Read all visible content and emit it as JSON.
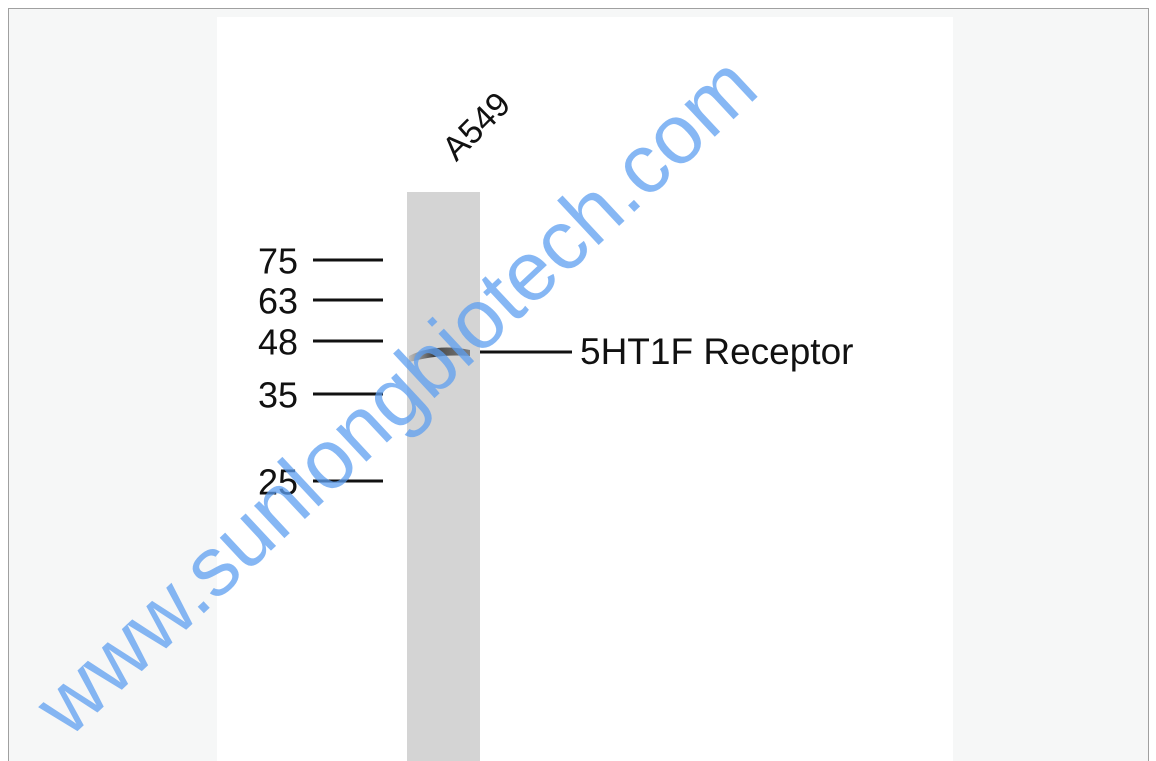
{
  "lane_label": "A549",
  "markers": [
    "75",
    "63",
    "48",
    "35",
    "25"
  ],
  "band_label": "5HT1F Receptor",
  "watermark": "www.sunlongbiotech.com"
}
